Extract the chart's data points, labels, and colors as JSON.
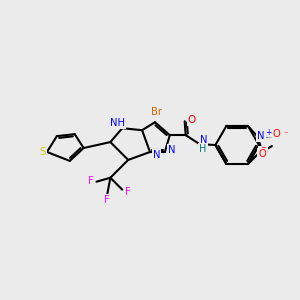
{
  "bg_color": "#ebebeb",
  "bond_color": "#000000",
  "bond_lw": 1.5,
  "atom_colors": {
    "N": "#0000ff",
    "H": "#008080",
    "Br": "#cc6600",
    "O": "#ff0000",
    "F": "#ff00ff",
    "S": "#cccc00",
    "C": "#000000",
    "OMe": "#ff0000",
    "NO2_N": "#0000ff",
    "NO2_O": "#ff0000"
  },
  "font_size": 7.2
}
